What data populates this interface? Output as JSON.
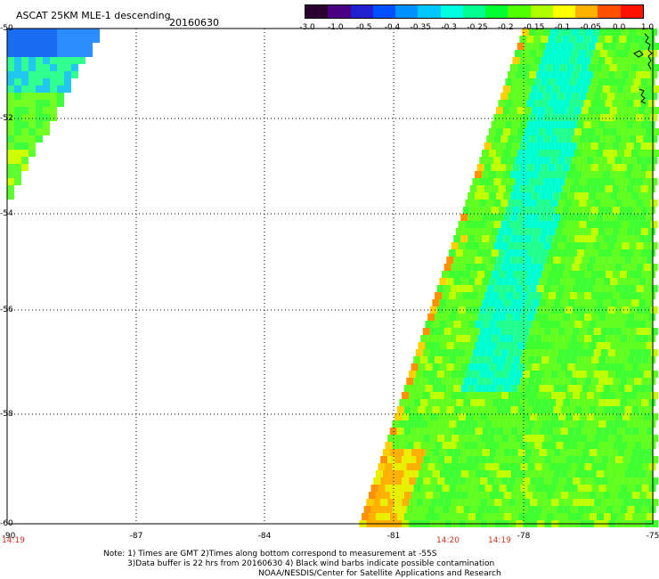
{
  "header": {
    "title": "ASCAT 25KM MLE-1 descending",
    "date": "20160630"
  },
  "colorbar": {
    "colors": [
      "#2a0030",
      "#4a0080",
      "#2020d0",
      "#0050ff",
      "#0090ff",
      "#00c8ff",
      "#00ffe0",
      "#00ff90",
      "#00ff30",
      "#50ff00",
      "#b0ff00",
      "#ffff00",
      "#ffb000",
      "#ff5000",
      "#ff1000"
    ],
    "labels": [
      "-3.0",
      "-1.0",
      "-0.5",
      "-0.4",
      "-0.35",
      "-0.3",
      "-0.25",
      "-0.2",
      "-0.15",
      "-0.1",
      "-0.05",
      "0.0",
      "1.0"
    ]
  },
  "axes": {
    "lat_labels": [
      "-50",
      "-52",
      "-54",
      "-56",
      "-58",
      "-60"
    ],
    "lon_labels": [
      "-90",
      "-87",
      "-84",
      "-81",
      "-78",
      "-75"
    ]
  },
  "times": {
    "left": "14:19",
    "mid1": "14:20",
    "mid2": "14:19"
  },
  "notes": {
    "line1": "Note: 1) Times are GMT 2)Times along bottom correspond to measurement at -55S",
    "line2": "3)Data buffer is 22 hrs from 20160630 4) Black wind barbs indicate possible contamination",
    "line3": "NOAA/NESDIS/Center for Satellite Applications and Research"
  }
}
